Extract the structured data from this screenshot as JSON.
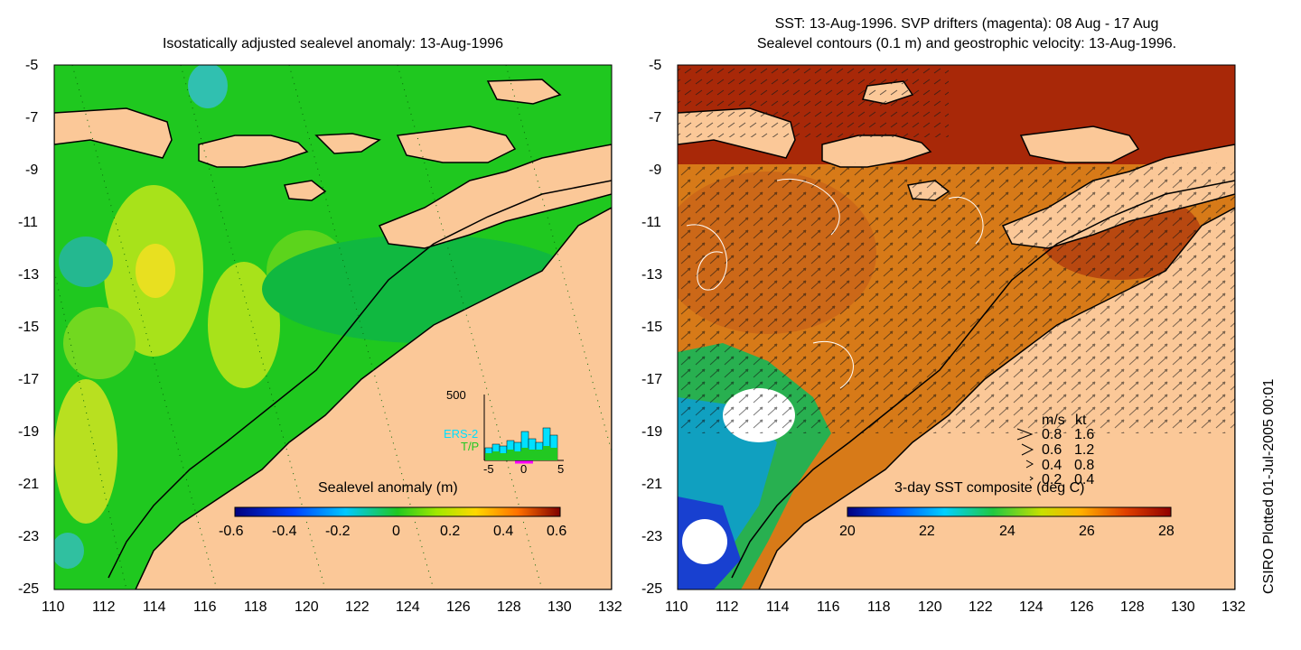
{
  "left_panel": {
    "title": "Isostatically adjusted sealevel anomaly: 13-Aug-1996",
    "colorbar_label": "Sealevel anomaly (m)",
    "colorbar_ticks": [
      "-0.6",
      "-0.4",
      "-0.2",
      "0",
      "0.2",
      "0.4",
      "0.6"
    ],
    "inset": {
      "y_max_label": "500",
      "series_labels": [
        "ERS-2",
        "T/P"
      ],
      "x_ticks": [
        "-5",
        "0",
        "5"
      ]
    }
  },
  "right_panel": {
    "title_line1": "SST: 13-Aug-1996. SVP drifters (magenta): 08 Aug - 17 Aug",
    "title_line2": "Sealevel contours (0.1 m) and geostrophic velocity: 13-Aug-1996.",
    "colorbar_label": "3-day SST composite (deg C)",
    "colorbar_ticks": [
      "20",
      "22",
      "24",
      "26",
      "28"
    ],
    "velocity_key": {
      "header_ms": "m/s",
      "header_kt": "kt",
      "rows": [
        {
          "ms": "0.8",
          "kt": "1.6"
        },
        {
          "ms": "0.6",
          "kt": "1.2"
        },
        {
          "ms": "0.4",
          "kt": "0.8"
        },
        {
          "ms": "0.2",
          "kt": "0.4"
        }
      ]
    }
  },
  "axes": {
    "y_ticks": [
      "-5",
      "-7",
      "-9",
      "-11",
      "-13",
      "-15",
      "-17",
      "-19",
      "-21",
      "-23",
      "-25"
    ],
    "x_ticks": [
      "110",
      "112",
      "114",
      "116",
      "118",
      "120",
      "122",
      "124",
      "126",
      "128",
      "130",
      "132"
    ]
  },
  "stamp": "CSIRO Plotted 01-Jul-2005 00:01",
  "colors": {
    "land": "#fbc898",
    "ocean_left": "#1fc81f",
    "coast": "#000000"
  }
}
